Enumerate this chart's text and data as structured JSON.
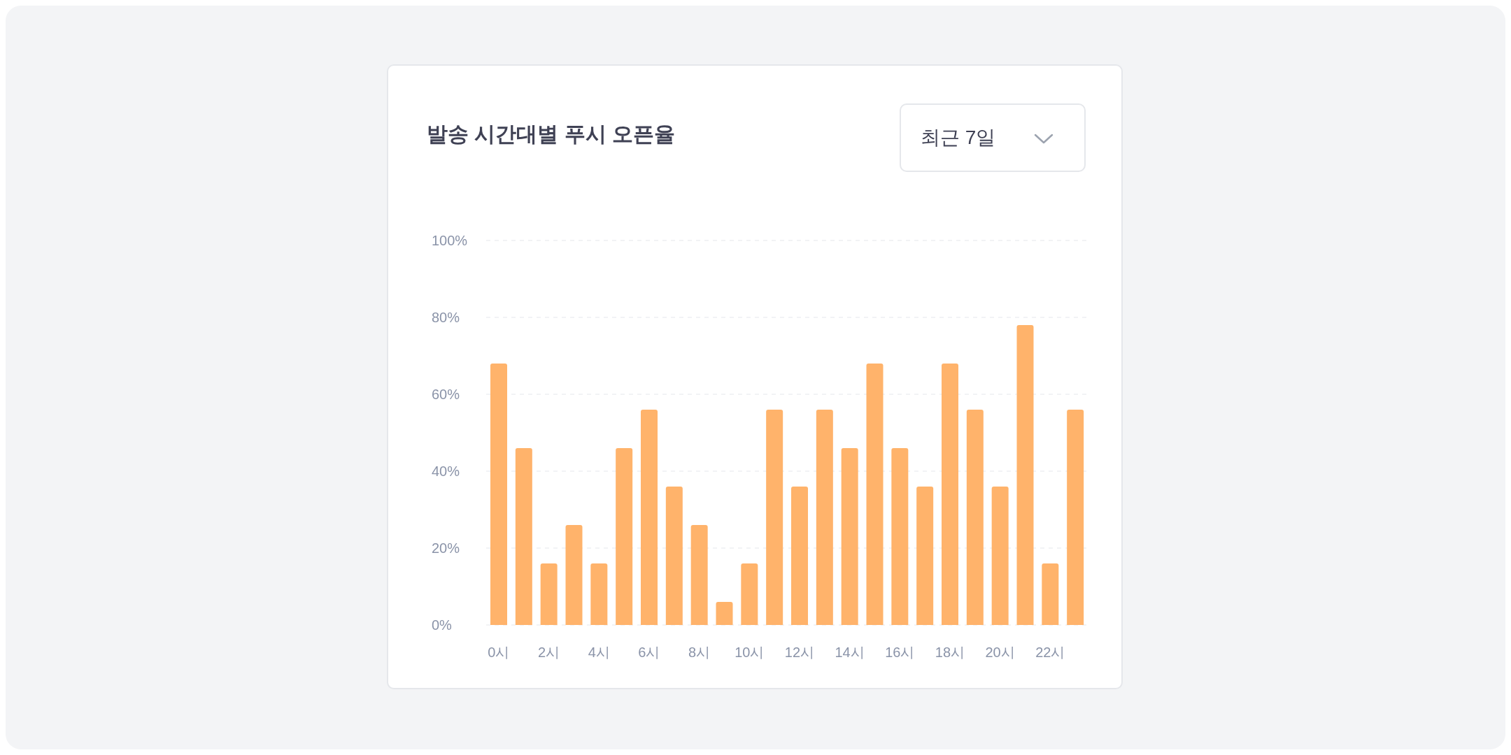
{
  "chart_data": {
    "type": "bar",
    "title": "발송 시간대별 푸시 오픈율",
    "annotations": [
      "최근 7일"
    ],
    "categories": [
      "0시",
      null,
      "2시",
      null,
      "4시",
      null,
      "6시",
      null,
      "8시",
      null,
      "10시",
      null,
      "12시",
      null,
      "14시",
      null,
      "16시",
      null,
      "18시",
      null,
      "20시",
      null,
      "22시",
      null
    ],
    "values": [
      68,
      46,
      16,
      26,
      16,
      46,
      56,
      36,
      26,
      6,
      16,
      56,
      36,
      56,
      46,
      68,
      46,
      36,
      68,
      56,
      36,
      78,
      16,
      56
    ],
    "color": "#ffb36b",
    "ylim": [
      0,
      100
    ],
    "yticks": [
      {
        "value": 0,
        "label": "0%"
      },
      {
        "value": 20,
        "label": "20%"
      },
      {
        "value": 40,
        "label": "40%"
      },
      {
        "value": 60,
        "label": "60%"
      },
      {
        "value": 80,
        "label": "80%"
      },
      {
        "value": 100,
        "label": "100%"
      }
    ],
    "grid": "y",
    "legend": false
  }
}
